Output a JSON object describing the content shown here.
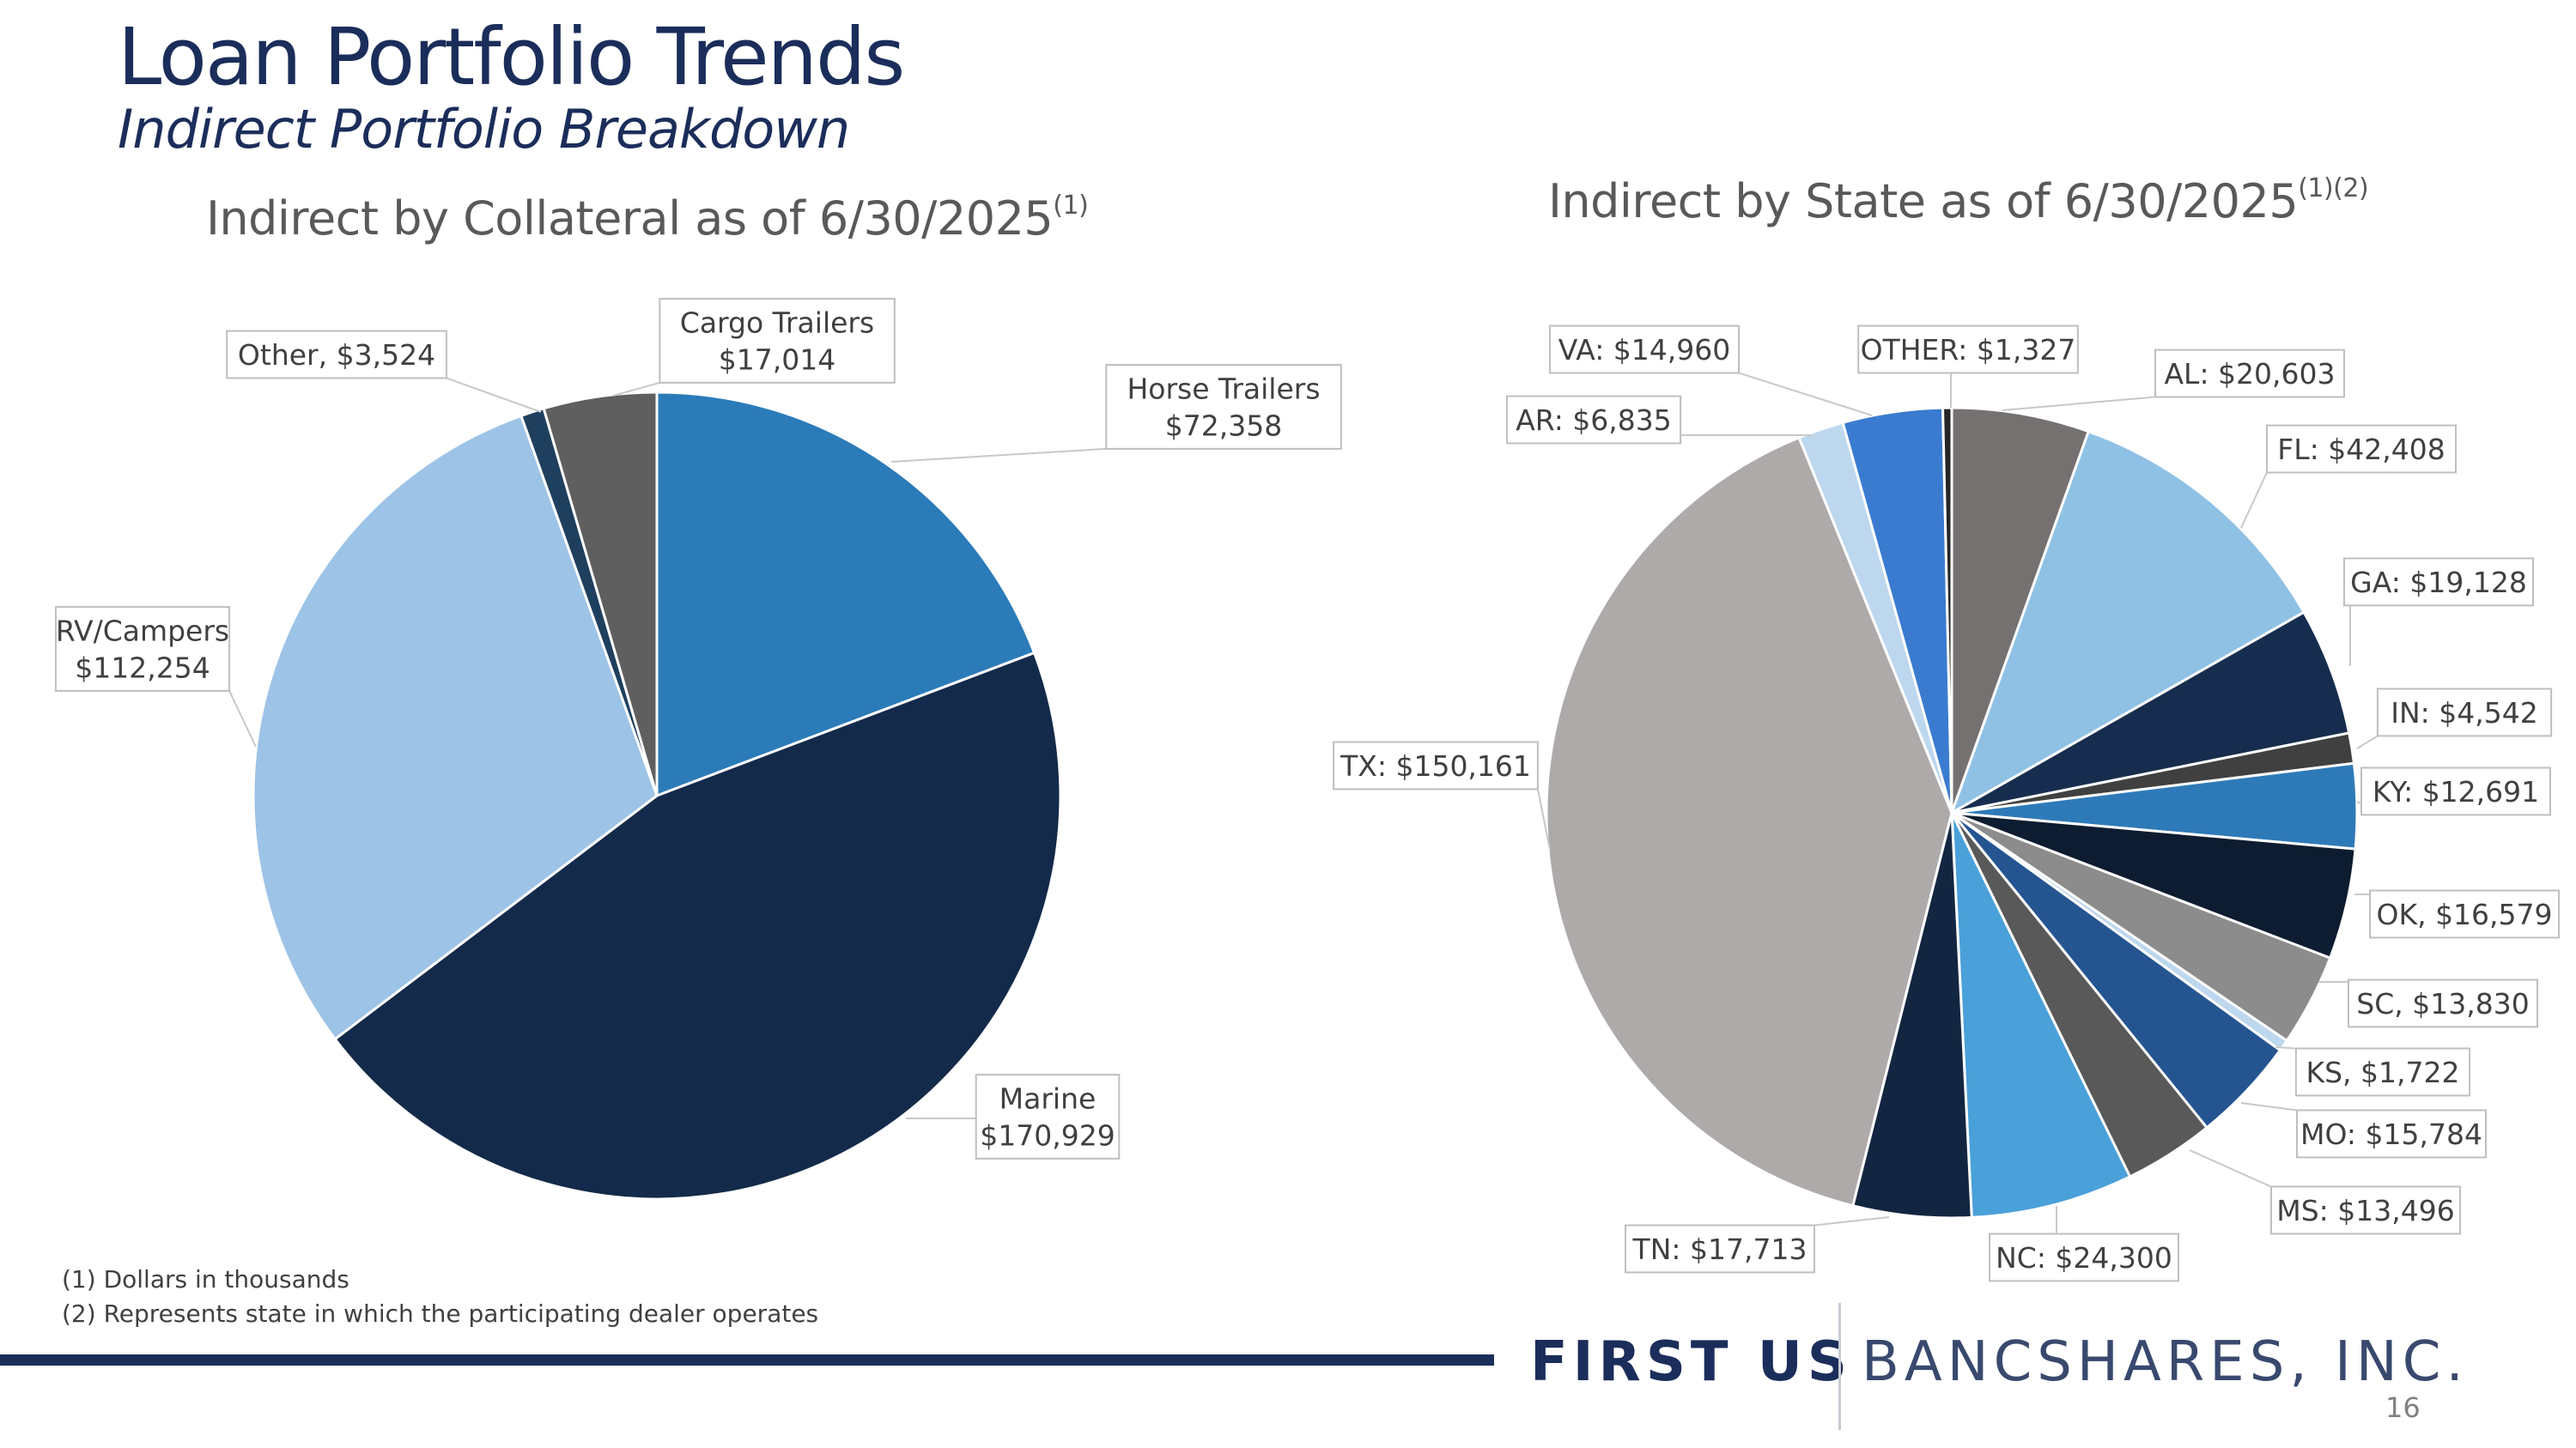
{
  "header": {
    "title": "Loan Portfolio Trends",
    "subtitle": "Indirect Portfolio Breakdown"
  },
  "chart_data": [
    {
      "type": "pie",
      "title": "Indirect by Collateral as of 6/30/2025",
      "title_note": "(1)",
      "units": "Dollars in thousands",
      "start": "12 o'clock, clockwise",
      "slices": [
        {
          "label": "Horse Trailers",
          "display": "$72,358",
          "sep": "",
          "value": 72358,
          "color": "#2b7bb9"
        },
        {
          "label": "Marine",
          "display": "$170,929",
          "sep": "",
          "value": 170929,
          "color": "#142a4a"
        },
        {
          "label": "RV/Campers",
          "display": "$112,254",
          "sep": "",
          "value": 112254,
          "color": "#9dc3e6"
        },
        {
          "label": "Other",
          "display": "$3,524",
          "sep": ", ",
          "value": 3524,
          "color": "#1f3f5e"
        },
        {
          "label": "Cargo Trailers",
          "display": "$17,014",
          "sep": "",
          "value": 17014,
          "color": "#5f5f5f"
        }
      ]
    },
    {
      "type": "pie",
      "title": "Indirect by State as of 6/30/2025",
      "title_note": "(1)(2)",
      "units": "Dollars in thousands",
      "start": "12 o'clock, clockwise",
      "slices": [
        {
          "label": "AL",
          "display": "$20,603",
          "sep": ": ",
          "value": 20603,
          "color": "#767171"
        },
        {
          "label": "FL",
          "display": "$42,408",
          "sep": ": ",
          "value": 42408,
          "color": "#8fc1e5"
        },
        {
          "label": "GA",
          "display": "$19,128",
          "sep": ": ",
          "value": 19128,
          "color": "#172d4f"
        },
        {
          "label": "IN",
          "display": "$4,542",
          "sep": ": ",
          "value": 4542,
          "color": "#404040"
        },
        {
          "label": "KY",
          "display": "$12,691",
          "sep": ": ",
          "value": 12691,
          "color": "#2e7ab8"
        },
        {
          "label": "OK",
          "display": "$16,579",
          "sep": ", ",
          "value": 16579,
          "color": "#0d1c30"
        },
        {
          "label": "SC",
          "display": "$13,830",
          "sep": ", ",
          "value": 13830,
          "color": "#8c8c8c"
        },
        {
          "label": "KS",
          "display": "$1,722",
          "sep": ", ",
          "value": 1722,
          "color": "#bdd7ee"
        },
        {
          "label": "MO",
          "display": "$15,784",
          "sep": ": ",
          "value": 15784,
          "color": "#255591"
        },
        {
          "label": "MS",
          "display": "$13,496",
          "sep": ": ",
          "value": 13496,
          "color": "#595959"
        },
        {
          "label": "NC",
          "display": "$24,300",
          "sep": ": ",
          "value": 24300,
          "color": "#4aa0d9"
        },
        {
          "label": "TN",
          "display": "$17,713",
          "sep": ": ",
          "value": 17713,
          "color": "#132641"
        },
        {
          "label": "TX",
          "display": "$150,161",
          "sep": ": ",
          "value": 150161,
          "color": "#aeaaaa"
        },
        {
          "label": "AR",
          "display": "$6,835",
          "sep": ": ",
          "value": 6835,
          "color": "#bdd7ee"
        },
        {
          "label": "VA",
          "display": "$14,960",
          "sep": ": ",
          "value": 14960,
          "color": "#3a7bd0"
        },
        {
          "label": "OTHER",
          "display": "$1,327",
          "sep": ": ",
          "value": 1327,
          "color": "#262626"
        }
      ]
    }
  ],
  "footnotes": [
    "(1) Dollars in thousands",
    "(2) Represents state in which the participating dealer operates"
  ],
  "footer": {
    "logo_first": "FIRST US",
    "logo_rest": "BANCSHARES, INC.",
    "page_number": "16",
    "rule_color": "#1b2d5a"
  }
}
